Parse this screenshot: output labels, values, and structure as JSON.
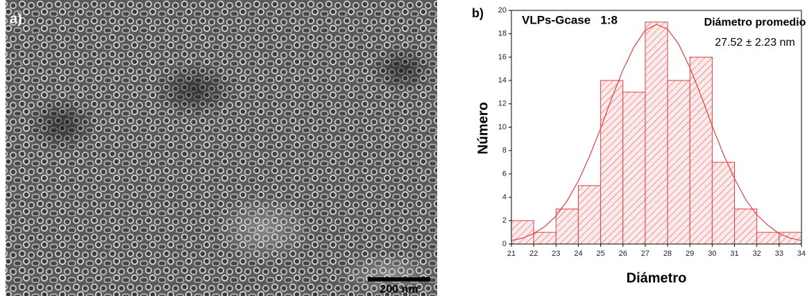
{
  "panel_a": {
    "label": "a)",
    "scale_bar": "200 nm"
  },
  "chart_data": {
    "type": "histogram",
    "panel_label": "b)",
    "title": "VLPs-Gcase   1:8",
    "annotations": [
      "Diámetro promedio",
      "27.52 ± 2.23 nm"
    ],
    "xlabel": "Diámetro",
    "ylabel": "Número",
    "bins": [
      21,
      22,
      23,
      24,
      25,
      26,
      27,
      28,
      29,
      30,
      31,
      32,
      33,
      34
    ],
    "values": [
      2,
      1,
      3,
      5,
      14,
      13,
      19,
      14,
      16,
      7,
      3,
      1,
      1
    ],
    "color": "#e04040",
    "fit": {
      "x": [
        21,
        21.5,
        22,
        22.5,
        23,
        23.5,
        24,
        24.5,
        25,
        25.5,
        26,
        26.5,
        27,
        27.5,
        28,
        28.5,
        29,
        29.5,
        30,
        30.5,
        31,
        31.5,
        32,
        32.5,
        33,
        33.5,
        34
      ],
      "values": [
        0.3,
        0.5,
        0.9,
        1.5,
        2.4,
        3.7,
        5.4,
        7.5,
        9.9,
        12.5,
        14.9,
        16.9,
        18.3,
        18.8,
        18.4,
        17.1,
        15.1,
        12.7,
        10.1,
        7.7,
        5.6,
        3.8,
        2.5,
        1.6,
        0.9,
        0.5,
        0.3
      ]
    },
    "xlim": [
      21,
      34
    ],
    "xticks": [
      21,
      22,
      23,
      24,
      25,
      26,
      27,
      28,
      29,
      30,
      31,
      32,
      33,
      34
    ],
    "ylim": [
      0,
      20
    ],
    "yticks": [
      0,
      2,
      4,
      6,
      8,
      10,
      12,
      14,
      16,
      18,
      20
    ],
    "grid": false
  }
}
